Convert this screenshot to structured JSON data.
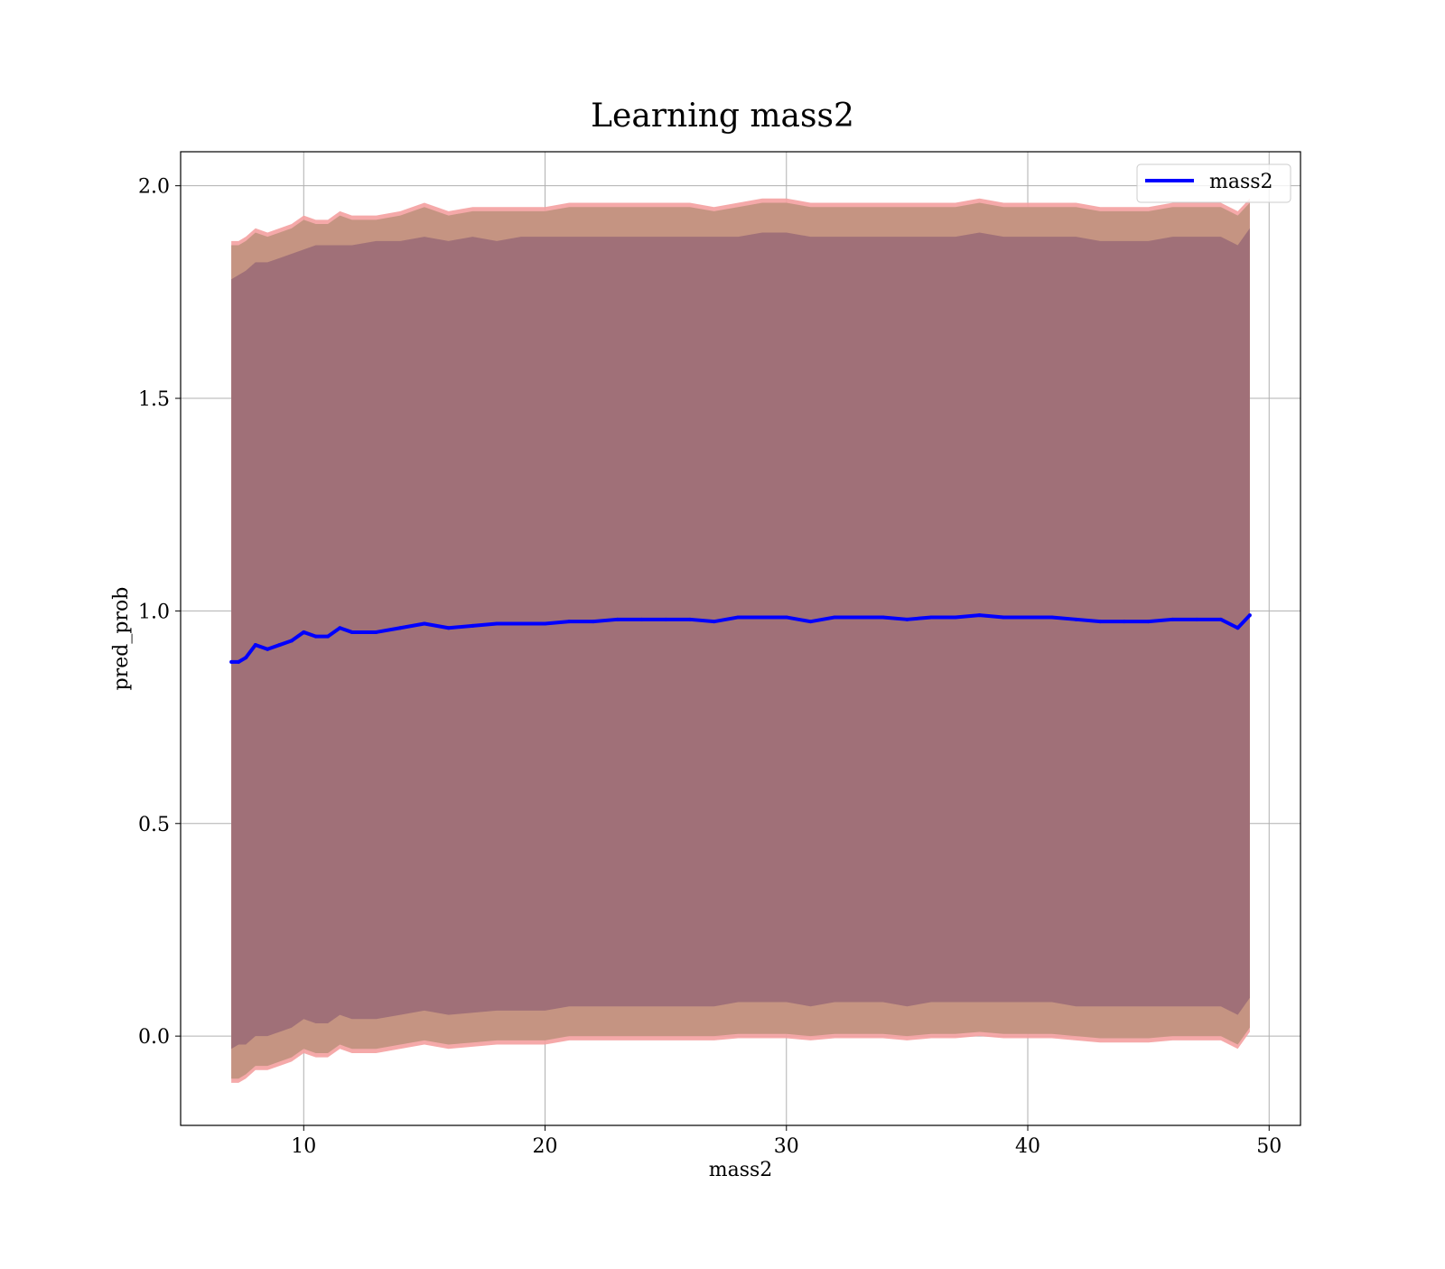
{
  "chart_data": {
    "type": "line",
    "title": "Learning mass2",
    "xlabel": "mass2",
    "ylabel": "pred_prob",
    "xlim": [
      4.9,
      51.3
    ],
    "ylim": [
      -0.21,
      2.08
    ],
    "grid": true,
    "legend_placement": "upper right",
    "x_ticks": [
      10,
      20,
      30,
      40,
      50
    ],
    "y_ticks": [
      0.0,
      0.5,
      1.0,
      1.5,
      2.0
    ],
    "x_tick_labels": [
      "10",
      "20",
      "30",
      "40",
      "50"
    ],
    "y_tick_labels": [
      "0.0",
      "0.5",
      "1.0",
      "1.5",
      "2.0"
    ],
    "colors": {
      "line": "#0000ff",
      "band_outer": "#f4a0a0",
      "band_middle": "#c59482",
      "band_inner": "#a07078",
      "grid": "#b0b0b0"
    },
    "series": [
      {
        "name": "mass2",
        "x": [
          7.0,
          7.3,
          7.6,
          8.0,
          8.5,
          9.0,
          9.5,
          10.0,
          10.5,
          11.0,
          11.5,
          12.0,
          13.0,
          14.0,
          15.0,
          16.0,
          17.0,
          18.0,
          19.0,
          20.0,
          21.0,
          22.0,
          23.0,
          24.0,
          25.0,
          26.0,
          27.0,
          28.0,
          29.0,
          30.0,
          31.0,
          32.0,
          33.0,
          34.0,
          35.0,
          36.0,
          37.0,
          38.0,
          39.0,
          40.0,
          41.0,
          42.0,
          43.0,
          44.0,
          45.0,
          46.0,
          47.0,
          48.0,
          48.7,
          49.2
        ],
        "y": [
          0.88,
          0.88,
          0.89,
          0.92,
          0.91,
          0.92,
          0.93,
          0.95,
          0.94,
          0.94,
          0.96,
          0.95,
          0.95,
          0.96,
          0.97,
          0.96,
          0.965,
          0.97,
          0.97,
          0.97,
          0.975,
          0.975,
          0.98,
          0.98,
          0.98,
          0.98,
          0.975,
          0.985,
          0.985,
          0.985,
          0.975,
          0.985,
          0.985,
          0.985,
          0.98,
          0.985,
          0.985,
          0.99,
          0.985,
          0.985,
          0.985,
          0.98,
          0.975,
          0.975,
          0.975,
          0.98,
          0.98,
          0.98,
          0.96,
          0.99
        ],
        "band_inner": {
          "upper": [
            1.78,
            1.79,
            1.8,
            1.82,
            1.82,
            1.83,
            1.84,
            1.85,
            1.86,
            1.86,
            1.86,
            1.86,
            1.87,
            1.87,
            1.88,
            1.87,
            1.88,
            1.87,
            1.88,
            1.88,
            1.88,
            1.88,
            1.88,
            1.88,
            1.88,
            1.88,
            1.88,
            1.88,
            1.89,
            1.89,
            1.88,
            1.88,
            1.88,
            1.88,
            1.88,
            1.88,
            1.88,
            1.89,
            1.88,
            1.88,
            1.88,
            1.88,
            1.87,
            1.87,
            1.87,
            1.88,
            1.88,
            1.88,
            1.86,
            1.9
          ],
          "lower": [
            -0.03,
            -0.02,
            -0.02,
            0.0,
            0.0,
            0.01,
            0.02,
            0.04,
            0.03,
            0.03,
            0.05,
            0.04,
            0.04,
            0.05,
            0.06,
            0.05,
            0.055,
            0.06,
            0.06,
            0.06,
            0.07,
            0.07,
            0.07,
            0.07,
            0.07,
            0.07,
            0.07,
            0.08,
            0.08,
            0.08,
            0.07,
            0.08,
            0.08,
            0.08,
            0.07,
            0.08,
            0.08,
            0.08,
            0.08,
            0.08,
            0.08,
            0.07,
            0.07,
            0.07,
            0.07,
            0.07,
            0.07,
            0.07,
            0.05,
            0.09
          ]
        },
        "band_middle": {
          "upper": [
            1.86,
            1.86,
            1.87,
            1.89,
            1.88,
            1.89,
            1.9,
            1.92,
            1.91,
            1.91,
            1.93,
            1.92,
            1.92,
            1.93,
            1.95,
            1.93,
            1.94,
            1.94,
            1.94,
            1.94,
            1.95,
            1.95,
            1.95,
            1.95,
            1.95,
            1.95,
            1.94,
            1.95,
            1.96,
            1.96,
            1.95,
            1.95,
            1.95,
            1.95,
            1.95,
            1.95,
            1.95,
            1.96,
            1.95,
            1.95,
            1.95,
            1.95,
            1.94,
            1.94,
            1.94,
            1.95,
            1.95,
            1.95,
            1.93,
            1.96
          ],
          "lower": [
            -0.1,
            -0.1,
            -0.09,
            -0.07,
            -0.07,
            -0.06,
            -0.05,
            -0.03,
            -0.04,
            -0.04,
            -0.02,
            -0.03,
            -0.03,
            -0.02,
            -0.01,
            -0.02,
            -0.015,
            -0.01,
            -0.01,
            -0.01,
            0.0,
            0.0,
            0.0,
            0.0,
            0.0,
            0.0,
            0.0,
            0.005,
            0.005,
            0.005,
            0.0,
            0.005,
            0.005,
            0.005,
            0.0,
            0.005,
            0.005,
            0.01,
            0.005,
            0.005,
            0.005,
            0.0,
            -0.005,
            -0.005,
            -0.005,
            0.0,
            0.0,
            0.0,
            -0.02,
            0.02
          ]
        },
        "band_outer": {
          "upper": [
            1.87,
            1.87,
            1.88,
            1.9,
            1.89,
            1.9,
            1.91,
            1.93,
            1.92,
            1.92,
            1.94,
            1.93,
            1.93,
            1.94,
            1.96,
            1.94,
            1.95,
            1.95,
            1.95,
            1.95,
            1.96,
            1.96,
            1.96,
            1.96,
            1.96,
            1.96,
            1.95,
            1.96,
            1.97,
            1.97,
            1.96,
            1.96,
            1.96,
            1.96,
            1.96,
            1.96,
            1.96,
            1.97,
            1.96,
            1.96,
            1.96,
            1.96,
            1.95,
            1.95,
            1.95,
            1.96,
            1.96,
            1.96,
            1.94,
            1.97
          ],
          "lower": [
            -0.11,
            -0.11,
            -0.1,
            -0.08,
            -0.08,
            -0.07,
            -0.06,
            -0.04,
            -0.05,
            -0.05,
            -0.03,
            -0.04,
            -0.04,
            -0.03,
            -0.02,
            -0.03,
            -0.025,
            -0.02,
            -0.02,
            -0.02,
            -0.01,
            -0.01,
            -0.01,
            -0.01,
            -0.01,
            -0.01,
            -0.01,
            -0.005,
            -0.005,
            -0.005,
            -0.01,
            -0.005,
            -0.005,
            -0.005,
            -0.01,
            -0.005,
            -0.005,
            0.0,
            -0.005,
            -0.005,
            -0.005,
            -0.01,
            -0.015,
            -0.015,
            -0.015,
            -0.01,
            -0.01,
            -0.01,
            -0.03,
            0.01
          ]
        }
      }
    ]
  }
}
